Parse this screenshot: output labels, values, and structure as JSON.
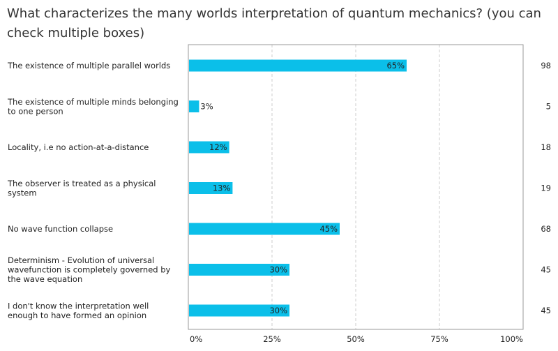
{
  "question": "What characterizes the many worlds interpretation of quantum mechanics? (you can check multiple boxes)",
  "colors": {
    "bar": "#0bbfe9",
    "grid": "#cccccc",
    "frame": "#999999"
  },
  "chart_data": {
    "type": "bar",
    "orientation": "horizontal",
    "title": "What characterizes the many worlds interpretation of quantum mechanics? (you can check multiple boxes)",
    "categories": [
      [
        "The existence of multiple parallel worlds"
      ],
      [
        "The existence of multiple minds belonging",
        "to one person"
      ],
      [
        "Locality, i.e no action-at-a-distance"
      ],
      [
        "The observer is treated as a physical",
        "system"
      ],
      [
        "No wave function collapse"
      ],
      [
        "Determinism - Evolution of universal",
        "wavefunction is completely governed by",
        "the wave equation"
      ],
      [
        "I don't know the interpretation well",
        "enough to have formed an opinion"
      ]
    ],
    "values": [
      65,
      3,
      12,
      13,
      45,
      30,
      30
    ],
    "value_labels": [
      "65%",
      "3%",
      "12%",
      "13%",
      "45%",
      "30%",
      "30%"
    ],
    "counts": [
      "98",
      "5",
      "18",
      "19",
      "68",
      "45",
      "45"
    ],
    "xlim": [
      0,
      100
    ],
    "xticks": [
      0,
      25,
      50,
      75,
      100
    ],
    "xtick_labels": [
      "0%",
      "25%",
      "50%",
      "75%",
      "100%"
    ],
    "grid": true
  }
}
